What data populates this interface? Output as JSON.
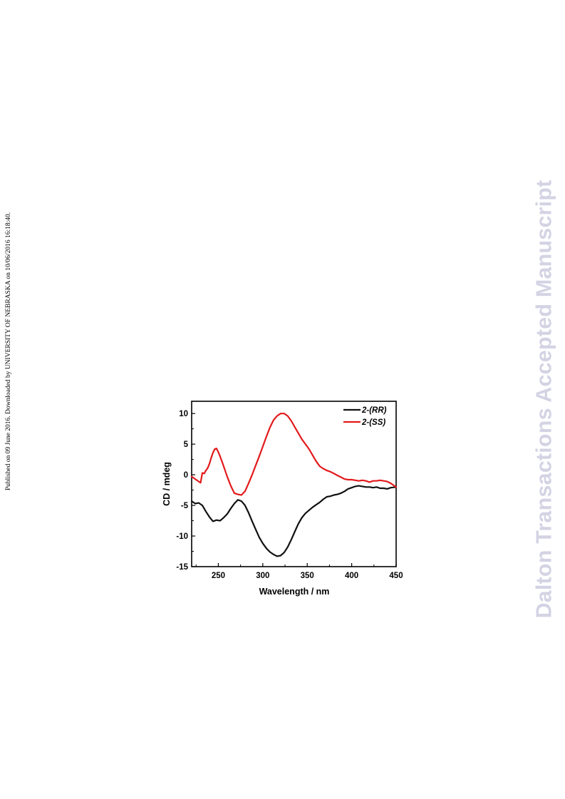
{
  "side_note": "Published on 09 June 2016. Downloaded by UNIVERSITY OF NEBRASKA on 10/06/2016 16:18:40.",
  "watermark": "Dalton Transactions Accepted Manuscript",
  "chart_data": {
    "type": "line",
    "title": "",
    "xlabel": "Wavelength / nm",
    "ylabel": "CD / mdeg",
    "xlim": [
      220,
      450
    ],
    "ylim": [
      -15,
      12
    ],
    "x_ticks": [
      250,
      300,
      350,
      400,
      450
    ],
    "y_ticks": [
      10,
      5,
      0,
      -5,
      -10,
      -15
    ],
    "legend_position": "top-right",
    "series": [
      {
        "name": "2-(RR)",
        "color": "#111111",
        "points": [
          [
            220,
            -4.3
          ],
          [
            224,
            -4.7
          ],
          [
            228,
            -4.6
          ],
          [
            232,
            -5.0
          ],
          [
            236,
            -6.0
          ],
          [
            240,
            -6.9
          ],
          [
            244,
            -7.6
          ],
          [
            248,
            -7.4
          ],
          [
            252,
            -7.5
          ],
          [
            256,
            -7.0
          ],
          [
            260,
            -6.4
          ],
          [
            264,
            -5.5
          ],
          [
            268,
            -4.7
          ],
          [
            272,
            -4.1
          ],
          [
            276,
            -4.3
          ],
          [
            280,
            -5.0
          ],
          [
            284,
            -6.2
          ],
          [
            288,
            -7.6
          ],
          [
            292,
            -8.9
          ],
          [
            296,
            -10.2
          ],
          [
            300,
            -11.2
          ],
          [
            304,
            -12.0
          ],
          [
            308,
            -12.6
          ],
          [
            312,
            -13.0
          ],
          [
            316,
            -13.3
          ],
          [
            320,
            -13.2
          ],
          [
            324,
            -12.7
          ],
          [
            328,
            -11.8
          ],
          [
            332,
            -10.6
          ],
          [
            336,
            -9.3
          ],
          [
            340,
            -8.0
          ],
          [
            344,
            -7.0
          ],
          [
            348,
            -6.3
          ],
          [
            352,
            -5.8
          ],
          [
            356,
            -5.3
          ],
          [
            360,
            -4.9
          ],
          [
            364,
            -4.5
          ],
          [
            368,
            -4.0
          ],
          [
            372,
            -3.6
          ],
          [
            376,
            -3.5
          ],
          [
            380,
            -3.3
          ],
          [
            384,
            -3.2
          ],
          [
            388,
            -3.0
          ],
          [
            392,
            -2.7
          ],
          [
            396,
            -2.3
          ],
          [
            400,
            -2.1
          ],
          [
            404,
            -1.9
          ],
          [
            408,
            -1.8
          ],
          [
            412,
            -1.9
          ],
          [
            416,
            -2.0
          ],
          [
            420,
            -2.0
          ],
          [
            424,
            -2.1
          ],
          [
            428,
            -2.0
          ],
          [
            432,
            -2.2
          ],
          [
            436,
            -2.2
          ],
          [
            440,
            -2.3
          ],
          [
            444,
            -2.1
          ],
          [
            450,
            -2.0
          ]
        ]
      },
      {
        "name": "2-(SS)",
        "color": "#e31a1c",
        "points": [
          [
            220,
            -0.3
          ],
          [
            224,
            -0.7
          ],
          [
            228,
            -1.1
          ],
          [
            230,
            -1.3
          ],
          [
            232,
            0.3
          ],
          [
            234,
            0.2
          ],
          [
            236,
            0.7
          ],
          [
            238,
            1.1
          ],
          [
            240,
            1.8
          ],
          [
            242,
            2.8
          ],
          [
            244,
            3.6
          ],
          [
            246,
            4.2
          ],
          [
            248,
            4.3
          ],
          [
            250,
            3.7
          ],
          [
            252,
            3.0
          ],
          [
            256,
            1.4
          ],
          [
            260,
            -0.3
          ],
          [
            264,
            -1.8
          ],
          [
            268,
            -3.0
          ],
          [
            272,
            -3.2
          ],
          [
            276,
            -3.3
          ],
          [
            280,
            -2.7
          ],
          [
            284,
            -1.4
          ],
          [
            288,
            0.0
          ],
          [
            292,
            1.5
          ],
          [
            296,
            3.0
          ],
          [
            300,
            4.6
          ],
          [
            304,
            6.2
          ],
          [
            308,
            7.7
          ],
          [
            312,
            8.9
          ],
          [
            316,
            9.6
          ],
          [
            320,
            10.0
          ],
          [
            324,
            10.0
          ],
          [
            328,
            9.6
          ],
          [
            332,
            8.8
          ],
          [
            336,
            7.8
          ],
          [
            340,
            6.8
          ],
          [
            344,
            5.8
          ],
          [
            348,
            5.0
          ],
          [
            352,
            4.2
          ],
          [
            356,
            3.2
          ],
          [
            360,
            2.2
          ],
          [
            364,
            1.4
          ],
          [
            368,
            1.0
          ],
          [
            372,
            0.7
          ],
          [
            376,
            0.5
          ],
          [
            380,
            0.2
          ],
          [
            384,
            -0.1
          ],
          [
            388,
            -0.4
          ],
          [
            392,
            -0.7
          ],
          [
            396,
            -0.8
          ],
          [
            400,
            -0.8
          ],
          [
            404,
            -0.9
          ],
          [
            408,
            -1.0
          ],
          [
            412,
            -0.9
          ],
          [
            416,
            -1.0
          ],
          [
            420,
            -1.2
          ],
          [
            424,
            -1.0
          ],
          [
            428,
            -1.0
          ],
          [
            432,
            -0.9
          ],
          [
            436,
            -1.0
          ],
          [
            440,
            -1.1
          ],
          [
            444,
            -1.4
          ],
          [
            448,
            -1.8
          ],
          [
            450,
            -2.0
          ]
        ]
      }
    ]
  }
}
